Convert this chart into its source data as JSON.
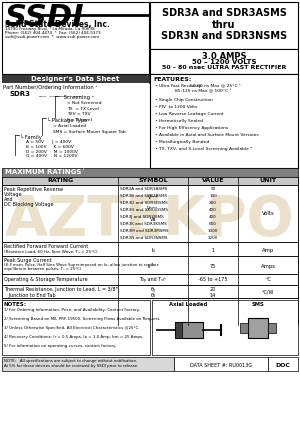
{
  "title_part": "SDR3A and SDR3ASMS\nthru\nSDR3N and SDR3NSMS",
  "subtitle_amps": "3.0 AMPS",
  "subtitle_volts": "50 – 1200 VOLTS",
  "subtitle_desc": "50 – 80 nsec ULTRA FAST RECTIFIER",
  "company": "Solid State Devices, Inc.",
  "company_addr1": "14700 Freeway Blvd. * La Mirada, Ca 90638",
  "company_addr2": "Phone: (562) 404-4474  *  Fax: (562) 404-5373",
  "company_addr3": "ssdi@ssdi-power.com  *  www.ssdi-power.com",
  "designer_sheet": "Designer's Data Sheet",
  "part_ordering": "Part Number/Ordering Information ¹",
  "part_base": "SDR3",
  "screening_items": [
    "= Not Screened",
    "TX  = TX Level",
    "TXV = TXV",
    "S = S Level"
  ],
  "package_items": [
    "= Axial Loaded",
    "SMS = Surface Mount Square Tab"
  ],
  "family_items": [
    "A = 50V      J = 400V",
    "B = 100V     K = 600V",
    "D = 200V     M = 1000V",
    "G = 400V     N = 1200V"
  ],
  "features_title": "FEATURES:",
  "feature_lines": [
    [
      "Ultra Fast Recovery:   ",
      "50-80 ns Max @ 25°C ³"
    ],
    [
      "",
      "85-125 ns Max @ 100°C ³"
    ],
    [
      "Single Chip Construction",
      ""
    ],
    [
      "PIV  to 1200 Volts",
      ""
    ],
    [
      "Low Reverse Leakage Current",
      ""
    ],
    [
      "Hermetically Sealed",
      ""
    ],
    [
      "For High Efficiency Applications",
      ""
    ],
    [
      "Available in Axial and Surface Mount Versions",
      ""
    ],
    [
      "Metallurgically Bonded",
      ""
    ],
    [
      "TX, TXV, and S-Level Screening Available ²",
      ""
    ]
  ],
  "parts_list": [
    "SDR3A and SDR3ASMS",
    "SDR3B and SDR3BSMS",
    "SDR3D and SDR3DSMS",
    "SDR3G and SDR3GSMS",
    "SDR3J and SDR3JSMS",
    "SDR3K and SDR3KSMS",
    "SDR3M and SDR3MSMS",
    "SDR3N and SDR3NSMS"
  ],
  "parts_vals": [
    "50",
    "100",
    "200",
    "400",
    "400",
    "600",
    "1000",
    "1200"
  ],
  "notes": [
    "1/ For Ordering Information, Price, and Availability: Contact Factory.",
    "2/ Screening Based on MIL PRF-19500. Screening Flows Available on Request.",
    "3/ Unless Otherwise Specified, All Electrical Characteristics @25°C.",
    "4/ Recovery Conditions: Ir = 0.5 Amps, Ia = 1.0 Amp, Irm = 25 Amps.",
    "5/ For information on operating curves, contact factory."
  ],
  "footer_note1": "NOTE:   All specifications are subject to change without notification.",
  "footer_note2": "At 5% for these devices should be reviewed by SSDI prior to release.",
  "footer_mid": "DATA SHEET #: RU0013G",
  "footer_right": "DOC",
  "watermark": "AZTEKPO",
  "watermark_color": "#c8a86e"
}
